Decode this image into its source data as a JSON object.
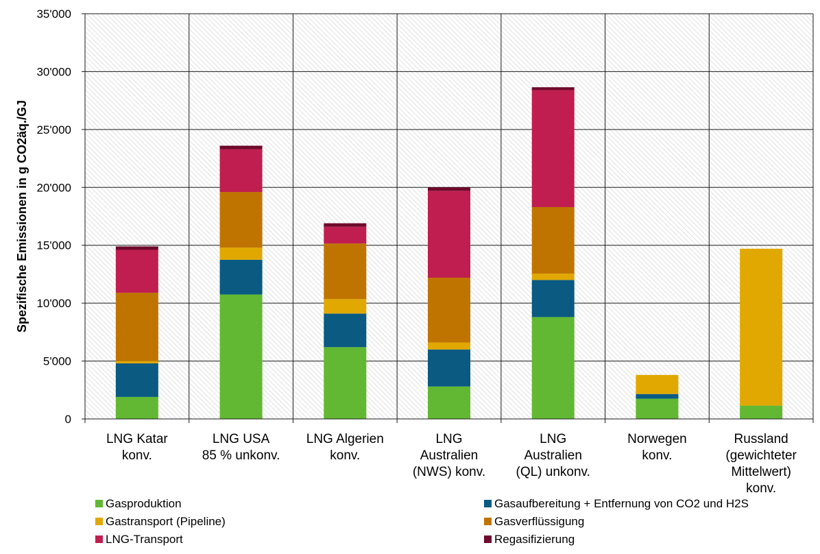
{
  "chart_data": {
    "type": "bar",
    "stacked": true,
    "ylabel": "Spezifische Emissionen in g CO2äq./GJ",
    "ylim": [
      0,
      35000
    ],
    "ytick_values": [
      0,
      5000,
      10000,
      15000,
      20000,
      25000,
      30000,
      35000
    ],
    "ytick_labels": [
      "0",
      "5'000",
      "10'000",
      "15'000",
      "20'000",
      "25'000",
      "30'000",
      "35'000"
    ],
    "grid": true,
    "legend_position": "bottom",
    "categories": [
      [
        "LNG Katar",
        "konv."
      ],
      [
        "LNG USA",
        "85 % unkonv."
      ],
      [
        "LNG Algerien",
        "konv."
      ],
      [
        "LNG",
        "Australien",
        "(NWS) konv."
      ],
      [
        "LNG",
        "Australien",
        "(QL) unkonv."
      ],
      [
        "Norwegen",
        "konv."
      ],
      [
        "Russland",
        "(gewichteter",
        "Mittelwert)",
        "konv."
      ]
    ],
    "series": [
      {
        "name": "Gasproduktion",
        "color": "#62b832",
        "values": [
          1900,
          10750,
          6200,
          2800,
          8800,
          1750,
          1150
        ]
      },
      {
        "name": "Gasaufbereitung + Entfernung von CO2 und H2S",
        "color": "#0a5a82",
        "values": [
          2900,
          3000,
          2900,
          3200,
          3200,
          400,
          0
        ]
      },
      {
        "name": "Gastransport (Pipeline)",
        "color": "#e0a800",
        "values": [
          200,
          1050,
          1250,
          600,
          550,
          1650,
          13550
        ]
      },
      {
        "name": "Gasverflüssigung",
        "color": "#c07400",
        "values": [
          5900,
          4800,
          4800,
          5600,
          5750,
          0,
          0
        ]
      },
      {
        "name": "LNG-Transport",
        "color": "#c01e50",
        "values": [
          3700,
          3700,
          1450,
          7500,
          10100,
          0,
          0
        ]
      },
      {
        "name": "Regasifizierung",
        "color": "#6e0a2c",
        "values": [
          300,
          300,
          300,
          300,
          250,
          0,
          0
        ]
      }
    ]
  }
}
